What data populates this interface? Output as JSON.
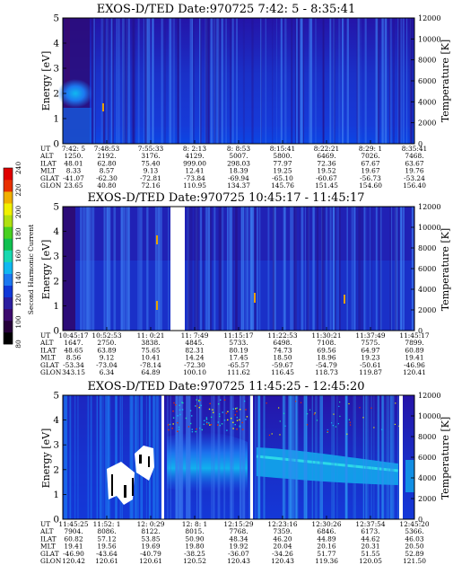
{
  "colorbar": {
    "label": "Second Harmonic Current",
    "ticks": [
      80,
      100,
      120,
      140,
      160,
      180,
      200,
      220,
      240
    ],
    "colors": [
      "#000000",
      "#26003a",
      "#3c0a6e",
      "#2b1ea0",
      "#1038d8",
      "#1c78f0",
      "#10b8f0",
      "#18d8b0",
      "#10c050",
      "#48d020",
      "#b0e010",
      "#f0f000",
      "#f0b000",
      "#e83000",
      "#e00000"
    ]
  },
  "chart_data": [
    {
      "type": "heatmap",
      "title": "EXOS-D/TED   Date:970725  7:42: 5 - 8:35:41",
      "ylabel": "Energy [eV]",
      "y2label": "Temperature [K]",
      "ylim": [
        0,
        5
      ],
      "y2lim": [
        0,
        12000
      ],
      "yticks": [
        "0",
        "1",
        "2",
        "3",
        "4",
        "5"
      ],
      "y2ticks": [
        "0",
        "2000",
        "4000",
        "6000",
        "8000",
        "10000",
        "12000"
      ],
      "table_labels": [
        "UT",
        "ALT",
        "ILAT",
        "MLT",
        "GLAT",
        "GLON"
      ],
      "columns": [
        [
          "7:42: 5",
          "1250.",
          "48.01",
          "8.33",
          "-41.07",
          "23.65"
        ],
        [
          "7:48:53",
          "2192.",
          "62.80",
          "8.57",
          "-62.30",
          "40.80"
        ],
        [
          "7:55:33",
          "3176.",
          "75.40",
          "9.13",
          "-72.81",
          "72.16"
        ],
        [
          "8: 2:13",
          "4129.",
          "999.00",
          "12.41",
          "-73.84",
          "110.95"
        ],
        [
          "8: 8:53",
          "5007.",
          "298.03",
          "18.39",
          "-69.94",
          "134.37"
        ],
        [
          "8:15:41",
          "5800.",
          "77.97",
          "19.25",
          "-65.10",
          "145.76"
        ],
        [
          "8:22:21",
          "6469.",
          "72.36",
          "19.52",
          "-60.67",
          "151.45"
        ],
        [
          "8:29: 1",
          "7026.",
          "67.67",
          "19.67",
          "-56.73",
          "154.60"
        ],
        [
          "8:35:41",
          "7468.",
          "63.67",
          "19.76",
          "-53.24",
          "156.40"
        ]
      ]
    },
    {
      "type": "heatmap",
      "title": "EXOS-D/TED   Date:970725  10:45:17 - 11:45:17",
      "ylabel": "Energy [eV]",
      "y2label": "Temperature [K]",
      "ylim": [
        0,
        5
      ],
      "y2lim": [
        0,
        12000
      ],
      "yticks": [
        "0",
        "1",
        "2",
        "3",
        "4",
        "5"
      ],
      "y2ticks": [
        "0",
        "2000",
        "4000",
        "6000",
        "8000",
        "10000",
        "12000"
      ],
      "table_labels": [
        "UT",
        "ALT",
        "ILAT",
        "MLT",
        "GLAT",
        "GLON"
      ],
      "columns": [
        [
          "10:45:17",
          "1647.",
          "48.65",
          "8.56",
          "-53.34",
          "343.15"
        ],
        [
          "10:52:53",
          "2750.",
          "63.89",
          "9.12",
          "-73.04",
          "6.34"
        ],
        [
          "11: 0:21",
          "3838.",
          "75.65",
          "10.41",
          "-78.14",
          "64.89"
        ],
        [
          "11: 7:49",
          "4845.",
          "82.31",
          "14.24",
          "-72.30",
          "100.10"
        ],
        [
          "11:15:17",
          "5733.",
          "80.19",
          "17.45",
          "-65.57",
          "111.62"
        ],
        [
          "11:22:53",
          "6498.",
          "74.73",
          "18.50",
          "-59.67",
          "116.45"
        ],
        [
          "11:30:21",
          "7108.",
          "69.56",
          "18.96",
          "-54.79",
          "118.73"
        ],
        [
          "11:37:49",
          "7575.",
          "64.97",
          "19.23",
          "-50.61",
          "119.87"
        ],
        [
          "11:45:17",
          "7899.",
          "60.89",
          "19.41",
          "-46.96",
          "120.41"
        ]
      ]
    },
    {
      "type": "heatmap",
      "title": "EXOS-D/TED   Date:970725  11:45:25 - 12:45:20",
      "ylabel": "Energy [eV]",
      "y2label": "Temperature [K]",
      "ylim": [
        0,
        5
      ],
      "y2lim": [
        0,
        12000
      ],
      "yticks": [
        "0",
        "1",
        "2",
        "3",
        "4",
        "5"
      ],
      "y2ticks": [
        "0",
        "2000",
        "4000",
        "6000",
        "8000",
        "10000",
        "12000"
      ],
      "table_labels": [
        "UT",
        "ALT",
        "ILAT",
        "MLT",
        "GLAT",
        "GLON"
      ],
      "columns": [
        [
          "11:45:25",
          "7904.",
          "60.82",
          "19.41",
          "-46.90",
          "120.42"
        ],
        [
          "11:52: 1",
          "8086.",
          "57.12",
          "19.56",
          "-43.64",
          "120.61"
        ],
        [
          "12: 0:29",
          "8122.",
          "53.85",
          "19.69",
          "-40.79",
          "120.61"
        ],
        [
          "12: 8: 1",
          "8015.",
          "50.90",
          "19.80",
          "-38.25",
          "120.52"
        ],
        [
          "12:15:29",
          "7768.",
          "48.34",
          "19.92",
          "-36.07",
          "120.43"
        ],
        [
          "12:23:16",
          "7359.",
          "46.20",
          "20.04",
          "-34.26",
          "120.43"
        ],
        [
          "12:30:26",
          "6846.",
          "44.89",
          "20.16",
          "51.77",
          "119.36"
        ],
        [
          "12:37:54",
          "6173.",
          "44.62",
          "20.31",
          "51.55",
          "120.05"
        ],
        [
          "12:45:20",
          "5366.",
          "46.03",
          "20.50",
          "52.89",
          "121.50"
        ]
      ]
    }
  ]
}
